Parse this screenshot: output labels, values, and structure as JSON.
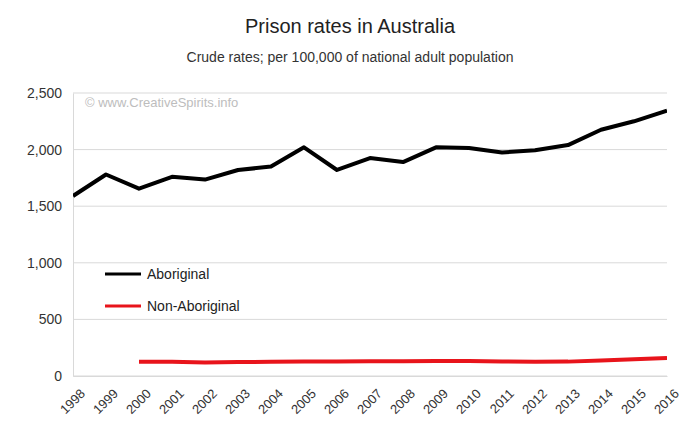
{
  "chart_data": {
    "type": "line",
    "title": "Prison rates in Australia",
    "subtitle": "Crude rates; per 100,000 of national adult population",
    "annotations": [
      "© www.CreativeSpirits.info"
    ],
    "categories": [
      "1998",
      "1999",
      "2000",
      "2001",
      "2002",
      "2003",
      "2004",
      "2005",
      "2006",
      "2007",
      "2008",
      "2009",
      "2010",
      "2011",
      "2012",
      "2013",
      "2014",
      "2015",
      "2016"
    ],
    "series": [
      {
        "name": "Aboriginal",
        "color": "#000000",
        "values": [
          1590,
          1780,
          1655,
          1760,
          1735,
          1820,
          1850,
          2020,
          1820,
          1925,
          1890,
          2020,
          2015,
          1975,
          1995,
          2040,
          2175,
          2250,
          2345
        ]
      },
      {
        "name": "Non-Aboriginal",
        "color": "#e8141b",
        "values": [
          null,
          null,
          125,
          125,
          120,
          123,
          125,
          127,
          128,
          130,
          130,
          132,
          132,
          128,
          125,
          127,
          138,
          148,
          158
        ]
      }
    ],
    "ylim": [
      0,
      2500
    ],
    "yticks": [
      0,
      500,
      {
        "value": 1000,
        "label": "1,000"
      },
      {
        "value": 1500,
        "label": "1,500"
      },
      {
        "value": 2000,
        "label": "2,000"
      },
      {
        "value": 2500,
        "label": "2,500"
      }
    ],
    "grid": true,
    "legend": "left"
  }
}
